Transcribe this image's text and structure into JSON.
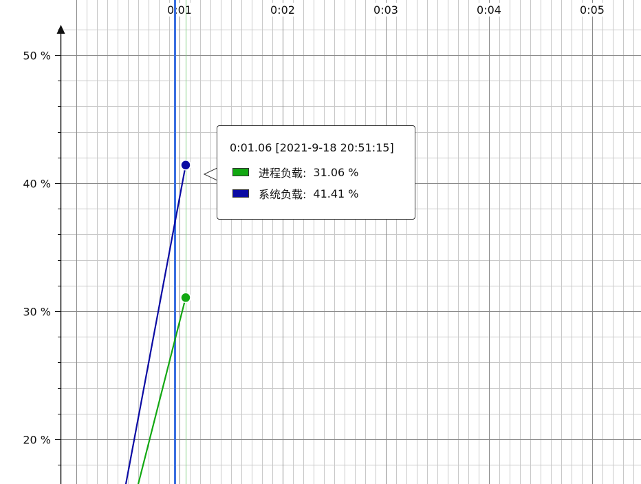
{
  "chart_data": {
    "type": "line",
    "x_tick_labels": [
      "0:01",
      "0:02",
      "0:03",
      "0:04",
      "0:05"
    ],
    "x_ticks_seconds": [
      1,
      2,
      3,
      4,
      5
    ],
    "xlim_seconds": [
      0.0,
      5.15
    ],
    "y_tick_labels": [
      "50 %",
      "40 %",
      "30 %",
      "20 %"
    ],
    "y_ticks": [
      50,
      40,
      30,
      20
    ],
    "ylim": [
      16.5,
      53.5
    ],
    "x_minor_step_seconds": 0.1,
    "y_minor_step": 2,
    "grid": true,
    "series": [
      {
        "name": "进程负载",
        "color": "#12a812",
        "x_seconds": [
          0.6,
          1.06
        ],
        "values": [
          16.5,
          31.06
        ]
      },
      {
        "name": "系统负载",
        "color": "#0b0ba3",
        "x_seconds": [
          0.48,
          1.06
        ],
        "values": [
          16.5,
          41.41
        ]
      }
    ],
    "cursor_line": {
      "x_seconds": 0.95,
      "color": "#3a6fe0"
    },
    "hover_line": {
      "x_seconds": 1.06,
      "color": "#7fcf7f"
    }
  },
  "tooltip": {
    "title": "0:01.06 [2021-9-18 20:51:15]",
    "rows": [
      {
        "name": "进程负载:",
        "value": "31.06 %",
        "color": "#12a812"
      },
      {
        "name": "系统负载:",
        "value": "41.41 %",
        "color": "#0b0ba3"
      }
    ]
  }
}
